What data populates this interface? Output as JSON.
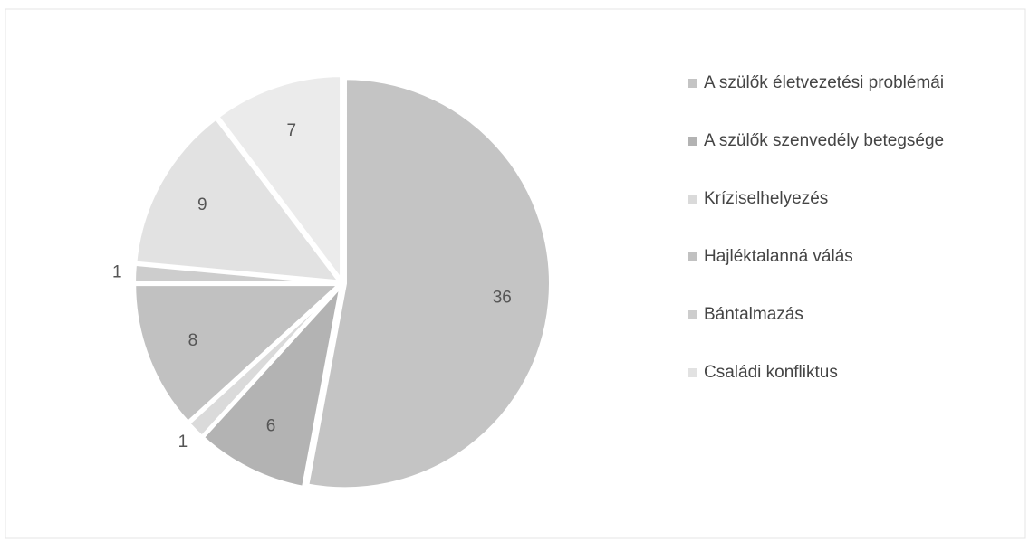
{
  "chart_data": {
    "type": "pie",
    "categories": [
      "A szülők életvezetési problémái",
      "A szülők szenvedély betegsége",
      "Kríziselhelyezés",
      "Hajléktalanná válás",
      "Bántalmazás",
      "Családi konfliktus",
      null
    ],
    "values": [
      36,
      6,
      1,
      8,
      1,
      9,
      7
    ],
    "colors": [
      "#c4c4c4",
      "#b3b3b3",
      "#dadada",
      "#c1c1c1",
      "#cdcdcd",
      "#e2e2e2",
      "#ebebeb"
    ]
  }
}
